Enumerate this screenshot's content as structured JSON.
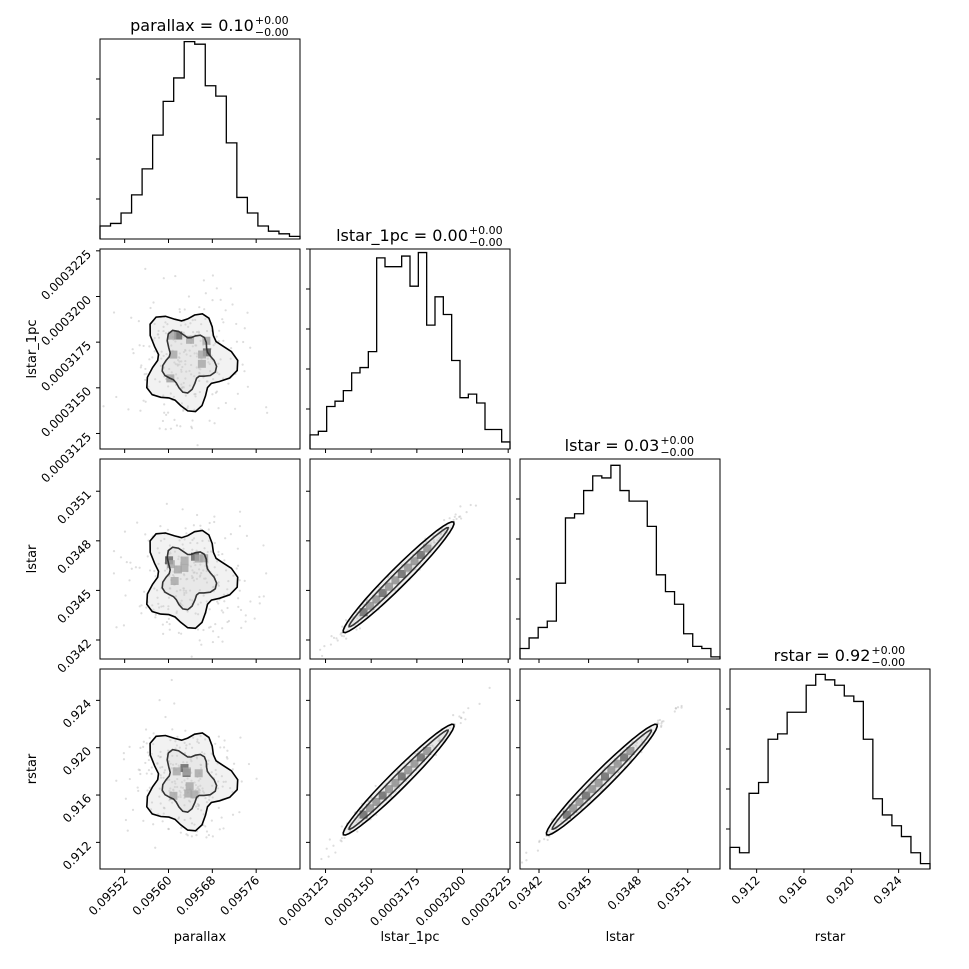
{
  "chart_data": {
    "type": "corner",
    "parameters": [
      "parallax",
      "lstar_1pc",
      "lstar",
      "rstar"
    ],
    "axis_labels": {
      "parallax": "parallax",
      "lstar_1pc": "lstar_1pc",
      "lstar": "lstar",
      "rstar": "rstar"
    },
    "titles": [
      {
        "param": "parallax",
        "main": "parallax = 0.10",
        "sup": "+0.00",
        "sub": "−0.00"
      },
      {
        "param": "lstar_1pc",
        "main": "lstar_1pc = 0.00",
        "sup": "+0.00",
        "sub": "−0.00"
      },
      {
        "param": "lstar",
        "main": "lstar = 0.03",
        "sup": "+0.00",
        "sub": "−0.00"
      },
      {
        "param": "rstar",
        "main": "rstar = 0.92",
        "sup": "+0.00",
        "sub": "−0.00"
      }
    ],
    "ranges": {
      "parallax": [
        0.095475,
        0.09584
      ],
      "lstar_1pc": [
        0.00031165,
        0.0003226
      ],
      "lstar": [
        0.034085,
        0.035295
      ],
      "rstar": [
        0.90975,
        0.92665
      ]
    },
    "ticks": {
      "parallax": {
        "values": [
          0.09552,
          0.0956,
          0.09568,
          0.09576
        ],
        "labels": [
          "0.09552",
          "0.09560",
          "0.09568",
          "0.09576"
        ]
      },
      "lstar_1pc": {
        "values": [
          0.0003125,
          0.000315,
          0.0003175,
          0.00032,
          0.0003225
        ],
        "labels": [
          "0.0003125",
          "0.0003150",
          "0.0003175",
          "0.0003200",
          "0.0003225"
        ]
      },
      "lstar": {
        "values": [
          0.0342,
          0.0345,
          0.0348,
          0.0351
        ],
        "labels": [
          "0.0342",
          "0.0345",
          "0.0348",
          "0.0351"
        ]
      },
      "rstar": {
        "values": [
          0.912,
          0.916,
          0.92,
          0.924
        ],
        "labels": [
          "0.912",
          "0.916",
          "0.920",
          "0.924"
        ]
      }
    },
    "histograms": {
      "parallax": [
        5,
        6,
        10,
        17,
        27,
        40,
        53,
        62,
        76,
        75,
        59,
        55,
        37,
        16,
        10,
        5,
        3,
        2,
        1
      ],
      "lstar_1pc": [
        8,
        10,
        24,
        27,
        33,
        43,
        46,
        55,
        108,
        103,
        103,
        109,
        92,
        111,
        70,
        86,
        76,
        50,
        29,
        31,
        26,
        11,
        11,
        4
      ],
      "lstar": [
        5,
        10,
        15,
        18,
        36,
        67,
        69,
        80,
        87,
        86,
        92,
        80,
        75,
        75,
        63,
        40,
        32,
        26,
        12,
        6,
        5,
        1
      ],
      "rstar": [
        4,
        3,
        14,
        16,
        24,
        25,
        29,
        29,
        34,
        36,
        35,
        34,
        32,
        31,
        24,
        13,
        10,
        8,
        6,
        3,
        1
      ]
    },
    "histogram_max": {
      "parallax": 77,
      "lstar_1pc": 113,
      "lstar": 95,
      "rstar": 37
    },
    "correlations": {
      "0-1": 0.1,
      "0-2": 0.1,
      "0-3": 0.1,
      "1-2": 0.985,
      "1-3": 0.98,
      "2-3": 0.995
    },
    "posterior_mean": {
      "parallax": 0.095635,
      "lstar_1pc": 0.0003165,
      "lstar": 0.03458,
      "rstar": 0.9173
    },
    "grid": false,
    "legend": "none"
  }
}
